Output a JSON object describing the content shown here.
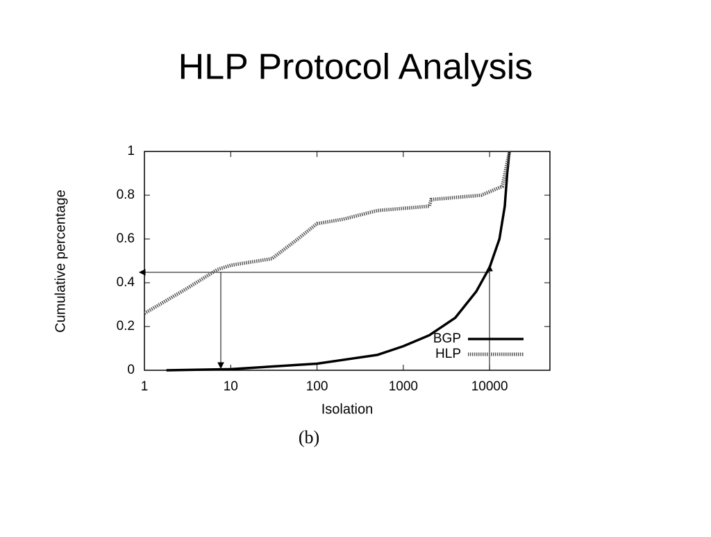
{
  "chart_data": {
    "type": "line",
    "title": "HLP Protocol Analysis",
    "caption": "(b)",
    "x_label": "Isolation",
    "y_label": "Cumulative percentage",
    "xscale": "log",
    "xlim": [
      1,
      50000
    ],
    "xticks": [
      1,
      10,
      100,
      1000,
      10000
    ],
    "ylim": [
      0,
      1
    ],
    "yticks": [
      0,
      0.2,
      0.4,
      0.6,
      0.8,
      1
    ],
    "legend": "lower right",
    "series": [
      {
        "name": "BGP",
        "color": "#000000",
        "style": "solid",
        "x": [
          1.8,
          10,
          100,
          500,
          1000,
          2000,
          4000,
          7000,
          10000,
          13000,
          15000,
          16000,
          17000
        ],
        "values": [
          0,
          0.005,
          0.03,
          0.07,
          0.11,
          0.16,
          0.24,
          0.36,
          0.47,
          0.6,
          0.75,
          0.9,
          1
        ]
      },
      {
        "name": "HLP",
        "color": "#555555",
        "style": "dotted",
        "x": [
          1,
          3,
          7,
          10,
          30,
          60,
          100,
          200,
          500,
          2000,
          2100,
          8000,
          14000,
          17000
        ],
        "values": [
          0.26,
          0.37,
          0.46,
          0.48,
          0.51,
          0.6,
          0.67,
          0.69,
          0.73,
          0.75,
          0.78,
          0.8,
          0.84,
          1
        ]
      }
    ]
  }
}
